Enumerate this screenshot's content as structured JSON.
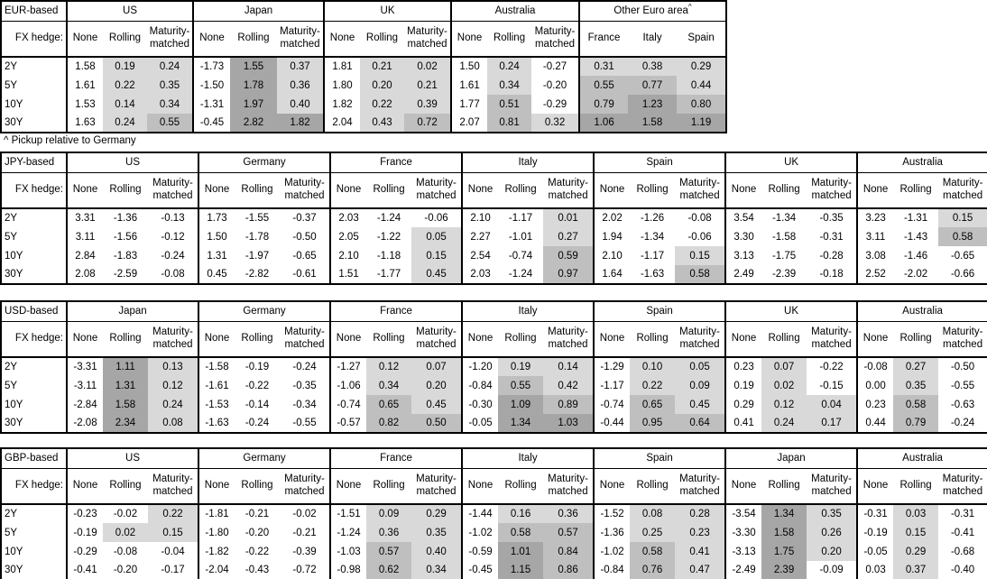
{
  "footnote": "^ Pickup relative to Germany",
  "fx_hedge_label": "FX hedge:",
  "row_labels": [
    "2Y",
    "5Y",
    "10Y",
    "30Y"
  ],
  "hedge_cols": [
    "None",
    "Rolling",
    "Maturity-matched"
  ],
  "shading_colors": {
    "light": "#d9d9d9",
    "medium": "#bfbfbf",
    "dark": "#a6a6a6"
  },
  "tables": [
    {
      "base_label": "EUR-based",
      "groups": [
        {
          "name": "US",
          "rows": [
            [
              "1.58",
              "0.19",
              "0.24"
            ],
            [
              "1.61",
              "0.22",
              "0.35"
            ],
            [
              "1.53",
              "0.14",
              "0.34"
            ],
            [
              "1.63",
              "0.24",
              "0.55"
            ]
          ]
        },
        {
          "name": "Japan",
          "rows": [
            [
              "-1.73",
              "1.55",
              "0.37"
            ],
            [
              "-1.50",
              "1.78",
              "0.36"
            ],
            [
              "-1.31",
              "1.97",
              "0.40"
            ],
            [
              "-0.45",
              "2.82",
              "1.82"
            ]
          ]
        },
        {
          "name": "UK",
          "rows": [
            [
              "1.81",
              "0.21",
              "0.02"
            ],
            [
              "1.80",
              "0.20",
              "0.21"
            ],
            [
              "1.82",
              "0.22",
              "0.39"
            ],
            [
              "2.04",
              "0.43",
              "0.72"
            ]
          ]
        },
        {
          "name": "Australia",
          "rows": [
            [
              "1.50",
              "0.24",
              "-0.27"
            ],
            [
              "1.61",
              "0.34",
              "-0.20"
            ],
            [
              "1.77",
              "0.51",
              "-0.29"
            ],
            [
              "2.07",
              "0.81",
              "0.32"
            ]
          ]
        },
        {
          "name": "Other Euro area",
          "sup": "^",
          "shade_all": true,
          "cols": [
            "France",
            "Italy",
            "Spain"
          ],
          "rows": [
            [
              "0.31",
              "0.38",
              "0.29"
            ],
            [
              "0.55",
              "0.77",
              "0.44"
            ],
            [
              "0.79",
              "1.23",
              "0.80"
            ],
            [
              "1.06",
              "1.58",
              "1.19"
            ]
          ]
        }
      ]
    },
    {
      "base_label": "JPY-based",
      "groups": [
        {
          "name": "US",
          "rows": [
            [
              "3.31",
              "-1.36",
              "-0.13"
            ],
            [
              "3.11",
              "-1.56",
              "-0.12"
            ],
            [
              "2.84",
              "-1.83",
              "-0.24"
            ],
            [
              "2.08",
              "-2.59",
              "-0.08"
            ]
          ]
        },
        {
          "name": "Germany",
          "rows": [
            [
              "1.73",
              "-1.55",
              "-0.37"
            ],
            [
              "1.50",
              "-1.78",
              "-0.50"
            ],
            [
              "1.31",
              "-1.97",
              "-0.65"
            ],
            [
              "0.45",
              "-2.82",
              "-0.61"
            ]
          ]
        },
        {
          "name": "France",
          "rows": [
            [
              "2.03",
              "-1.24",
              "-0.06"
            ],
            [
              "2.05",
              "-1.22",
              "0.05"
            ],
            [
              "2.10",
              "-1.18",
              "0.15"
            ],
            [
              "1.51",
              "-1.77",
              "0.45"
            ]
          ]
        },
        {
          "name": "Italy",
          "rows": [
            [
              "2.10",
              "-1.17",
              "0.01"
            ],
            [
              "2.27",
              "-1.01",
              "0.27"
            ],
            [
              "2.54",
              "-0.74",
              "0.59"
            ],
            [
              "2.03",
              "-1.24",
              "0.97"
            ]
          ]
        },
        {
          "name": "Spain",
          "rows": [
            [
              "2.02",
              "-1.26",
              "-0.08"
            ],
            [
              "1.94",
              "-1.34",
              "-0.06"
            ],
            [
              "2.10",
              "-1.17",
              "0.15"
            ],
            [
              "1.64",
              "-1.63",
              "0.58"
            ]
          ]
        },
        {
          "name": "UK",
          "rows": [
            [
              "3.54",
              "-1.34",
              "-0.35"
            ],
            [
              "3.30",
              "-1.58",
              "-0.31"
            ],
            [
              "3.13",
              "-1.75",
              "-0.28"
            ],
            [
              "2.49",
              "-2.39",
              "-0.18"
            ]
          ]
        },
        {
          "name": "Australia",
          "rows": [
            [
              "3.23",
              "-1.31",
              "0.15"
            ],
            [
              "3.11",
              "-1.43",
              "0.58"
            ],
            [
              "3.08",
              "-1.46",
              "-0.65"
            ],
            [
              "2.52",
              "-2.02",
              "-0.66"
            ]
          ]
        }
      ]
    },
    {
      "base_label": "USD-based",
      "groups": [
        {
          "name": "Japan",
          "rows": [
            [
              "-3.31",
              "1.11",
              "0.13"
            ],
            [
              "-3.11",
              "1.31",
              "0.12"
            ],
            [
              "-2.84",
              "1.58",
              "0.24"
            ],
            [
              "-2.08",
              "2.34",
              "0.08"
            ]
          ]
        },
        {
          "name": "Germany",
          "rows": [
            [
              "-1.58",
              "-0.19",
              "-0.24"
            ],
            [
              "-1.61",
              "-0.22",
              "-0.35"
            ],
            [
              "-1.53",
              "-0.14",
              "-0.34"
            ],
            [
              "-1.63",
              "-0.24",
              "-0.55"
            ]
          ]
        },
        {
          "name": "France",
          "rows": [
            [
              "-1.27",
              "0.12",
              "0.07"
            ],
            [
              "-1.06",
              "0.34",
              "0.20"
            ],
            [
              "-0.74",
              "0.65",
              "0.45"
            ],
            [
              "-0.57",
              "0.82",
              "0.50"
            ]
          ]
        },
        {
          "name": "Italy",
          "rows": [
            [
              "-1.20",
              "0.19",
              "0.14"
            ],
            [
              "-0.84",
              "0.55",
              "0.42"
            ],
            [
              "-0.30",
              "1.09",
              "0.89"
            ],
            [
              "-0.05",
              "1.34",
              "1.03"
            ]
          ]
        },
        {
          "name": "Spain",
          "rows": [
            [
              "-1.29",
              "0.10",
              "0.05"
            ],
            [
              "-1.17",
              "0.22",
              "0.09"
            ],
            [
              "-0.74",
              "0.65",
              "0.45"
            ],
            [
              "-0.44",
              "0.95",
              "0.64"
            ]
          ]
        },
        {
          "name": "UK",
          "rows": [
            [
              "0.23",
              "0.07",
              "-0.22"
            ],
            [
              "0.19",
              "0.02",
              "-0.15"
            ],
            [
              "0.29",
              "0.12",
              "0.04"
            ],
            [
              "0.41",
              "0.24",
              "0.17"
            ]
          ]
        },
        {
          "name": "Australia",
          "rows": [
            [
              "-0.08",
              "0.27",
              "-0.50"
            ],
            [
              "0.00",
              "0.35",
              "-0.55"
            ],
            [
              "0.23",
              "0.58",
              "-0.63"
            ],
            [
              "0.44",
              "0.79",
              "-0.24"
            ]
          ]
        }
      ]
    },
    {
      "base_label": "GBP-based",
      "groups": [
        {
          "name": "US",
          "rows": [
            [
              "-0.23",
              "-0.02",
              "0.22"
            ],
            [
              "-0.19",
              "0.02",
              "0.15"
            ],
            [
              "-0.29",
              "-0.08",
              "-0.04"
            ],
            [
              "-0.41",
              "-0.20",
              "-0.17"
            ]
          ]
        },
        {
          "name": "Germany",
          "rows": [
            [
              "-1.81",
              "-0.21",
              "-0.02"
            ],
            [
              "-1.80",
              "-0.20",
              "-0.21"
            ],
            [
              "-1.82",
              "-0.22",
              "-0.39"
            ],
            [
              "-2.04",
              "-0.43",
              "-0.72"
            ]
          ]
        },
        {
          "name": "France",
          "rows": [
            [
              "-1.51",
              "0.09",
              "0.29"
            ],
            [
              "-1.24",
              "0.36",
              "0.35"
            ],
            [
              "-1.03",
              "0.57",
              "0.40"
            ],
            [
              "-0.98",
              "0.62",
              "0.34"
            ]
          ]
        },
        {
          "name": "Italy",
          "rows": [
            [
              "-1.44",
              "0.16",
              "0.36"
            ],
            [
              "-1.02",
              "0.58",
              "0.57"
            ],
            [
              "-0.59",
              "1.01",
              "0.84"
            ],
            [
              "-0.45",
              "1.15",
              "0.86"
            ]
          ]
        },
        {
          "name": "Spain",
          "rows": [
            [
              "-1.52",
              "0.08",
              "0.28"
            ],
            [
              "-1.36",
              "0.25",
              "0.23"
            ],
            [
              "-1.02",
              "0.58",
              "0.41"
            ],
            [
              "-0.84",
              "0.76",
              "0.47"
            ]
          ]
        },
        {
          "name": "Japan",
          "rows": [
            [
              "-3.54",
              "1.34",
              "0.35"
            ],
            [
              "-3.30",
              "1.58",
              "0.26"
            ],
            [
              "-3.13",
              "1.75",
              "0.20"
            ],
            [
              "-2.49",
              "2.39",
              "-0.09"
            ]
          ]
        },
        {
          "name": "Australia",
          "rows": [
            [
              "-0.31",
              "0.03",
              "-0.31"
            ],
            [
              "-0.19",
              "0.15",
              "-0.41"
            ],
            [
              "-0.05",
              "0.29",
              "-0.68"
            ],
            [
              "0.03",
              "0.37",
              "-0.40"
            ]
          ]
        }
      ]
    }
  ]
}
